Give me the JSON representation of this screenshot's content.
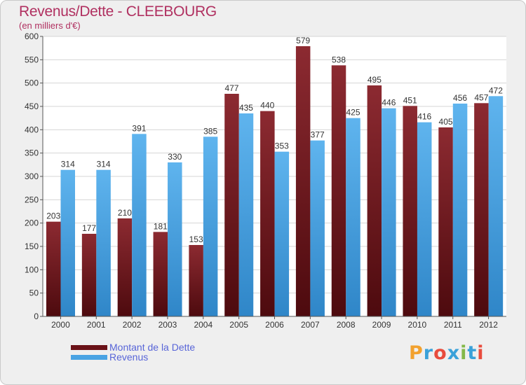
{
  "title": "Revenus/Dette - CLEEBOURG",
  "subtitle": "(en milliers d'€)",
  "logo": "Proxiti",
  "colors": {
    "dette": "#7a1c22",
    "revenus": "#4aa3e3",
    "title": "#b03060",
    "legend_text": "#5865d8",
    "logo": [
      "#f2a12e",
      "#3aa1d9",
      "#e84c3d",
      "#3aa1d9",
      "#84b848",
      "#3aa1d9",
      "#e84c3d"
    ]
  },
  "chart_data": {
    "type": "bar",
    "title": "Revenus/Dette - CLEEBOURG",
    "ylabel": "(en milliers d'€)",
    "xlabel": "",
    "categories": [
      "2000",
      "2001",
      "2002",
      "2003",
      "2004",
      "2005",
      "2006",
      "2007",
      "2008",
      "2009",
      "2010",
      "2011",
      "2012"
    ],
    "series": [
      {
        "name": "Montant de la Dette",
        "values": [
          203,
          177,
          210,
          181,
          153,
          477,
          440,
          579,
          538,
          495,
          451,
          405,
          457
        ]
      },
      {
        "name": "Revenus",
        "values": [
          314,
          314,
          391,
          330,
          385,
          435,
          353,
          377,
          425,
          446,
          416,
          456,
          472
        ]
      }
    ],
    "ylim": [
      0,
      600
    ],
    "yticks": [
      0,
      50,
      100,
      150,
      200,
      250,
      300,
      350,
      400,
      450,
      500,
      550,
      600
    ],
    "grid": true,
    "legend": "bottom-left"
  }
}
